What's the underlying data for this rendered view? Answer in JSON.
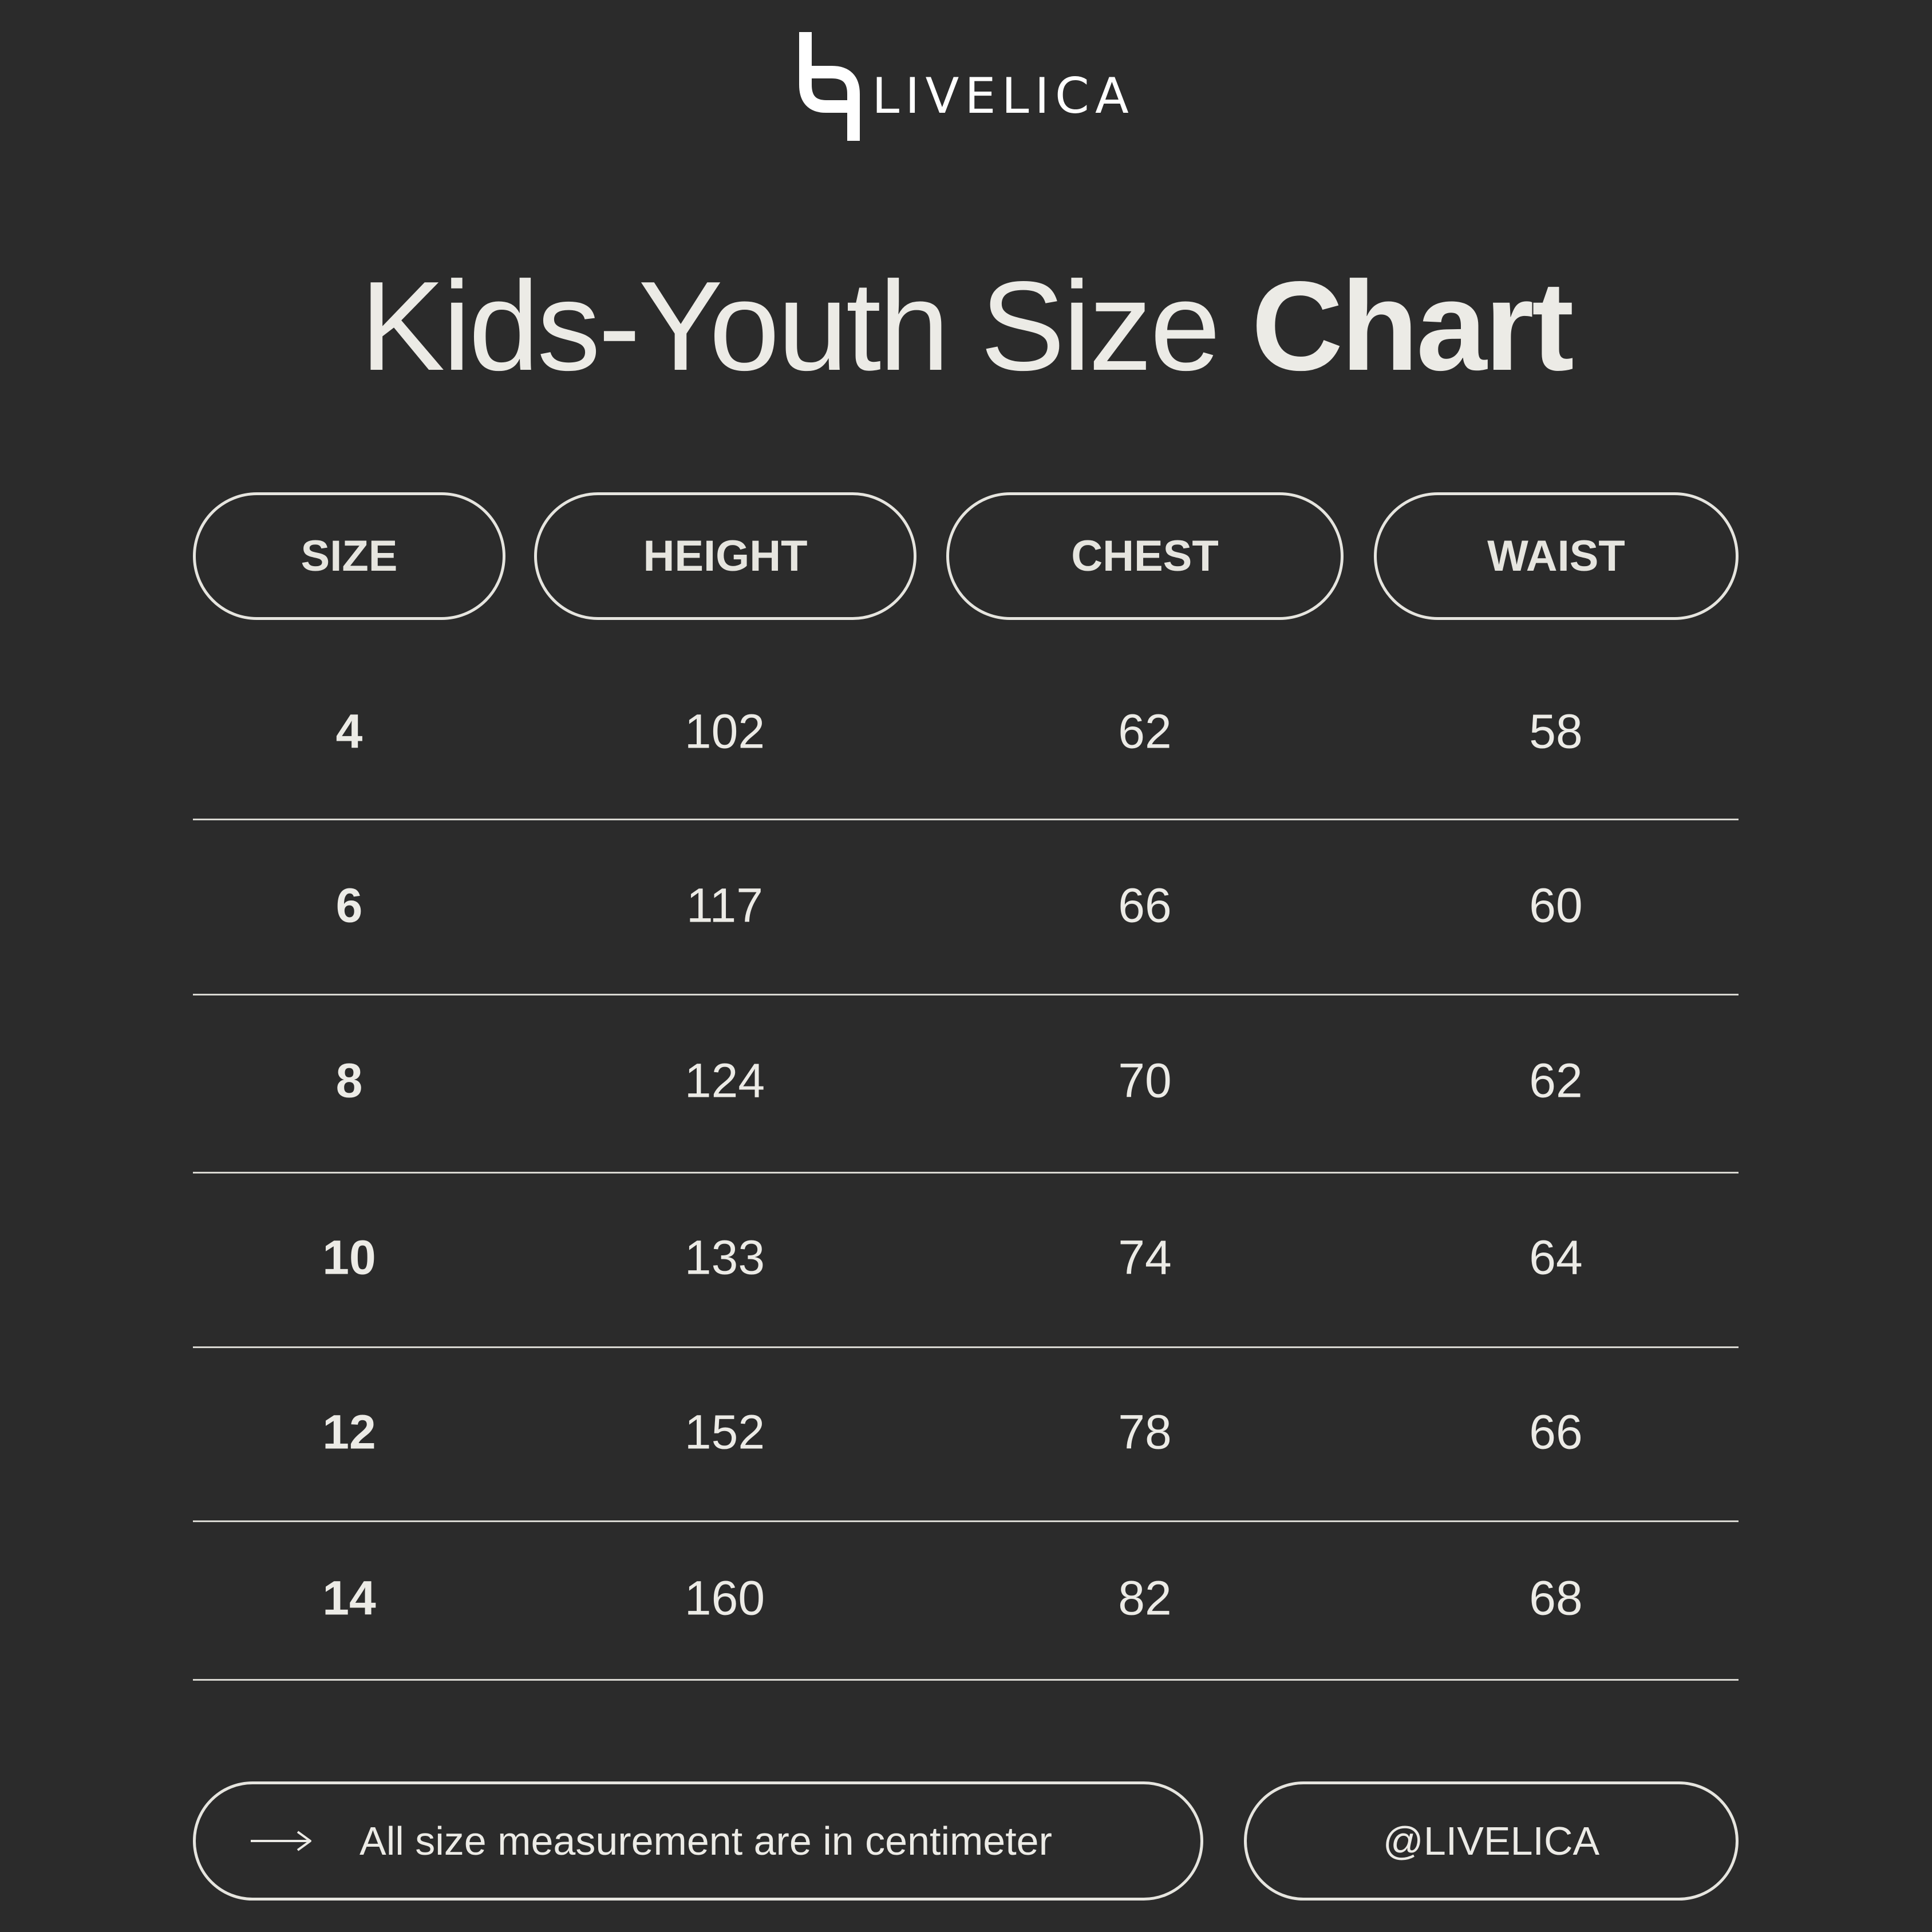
{
  "brand": {
    "name": "LIVELICA"
  },
  "title": {
    "regular": "Kids-Youth Size",
    "bold": "Chart"
  },
  "table": {
    "headers": [
      "SIZE",
      "HEIGHT",
      "CHEST",
      "WAIST"
    ],
    "rows": [
      [
        "4",
        "102",
        "62",
        "58"
      ],
      [
        "6",
        "117",
        "66",
        "60"
      ],
      [
        "8",
        "124",
        "70",
        "62"
      ],
      [
        "10",
        "133",
        "74",
        "64"
      ],
      [
        "12",
        "152",
        "78",
        "66"
      ],
      [
        "14",
        "160",
        "82",
        "68"
      ]
    ]
  },
  "footer": {
    "note": "All size measurement are in centimeter",
    "handle": "@LIVELICA",
    "note_icon": "arrow-right-icon"
  }
}
